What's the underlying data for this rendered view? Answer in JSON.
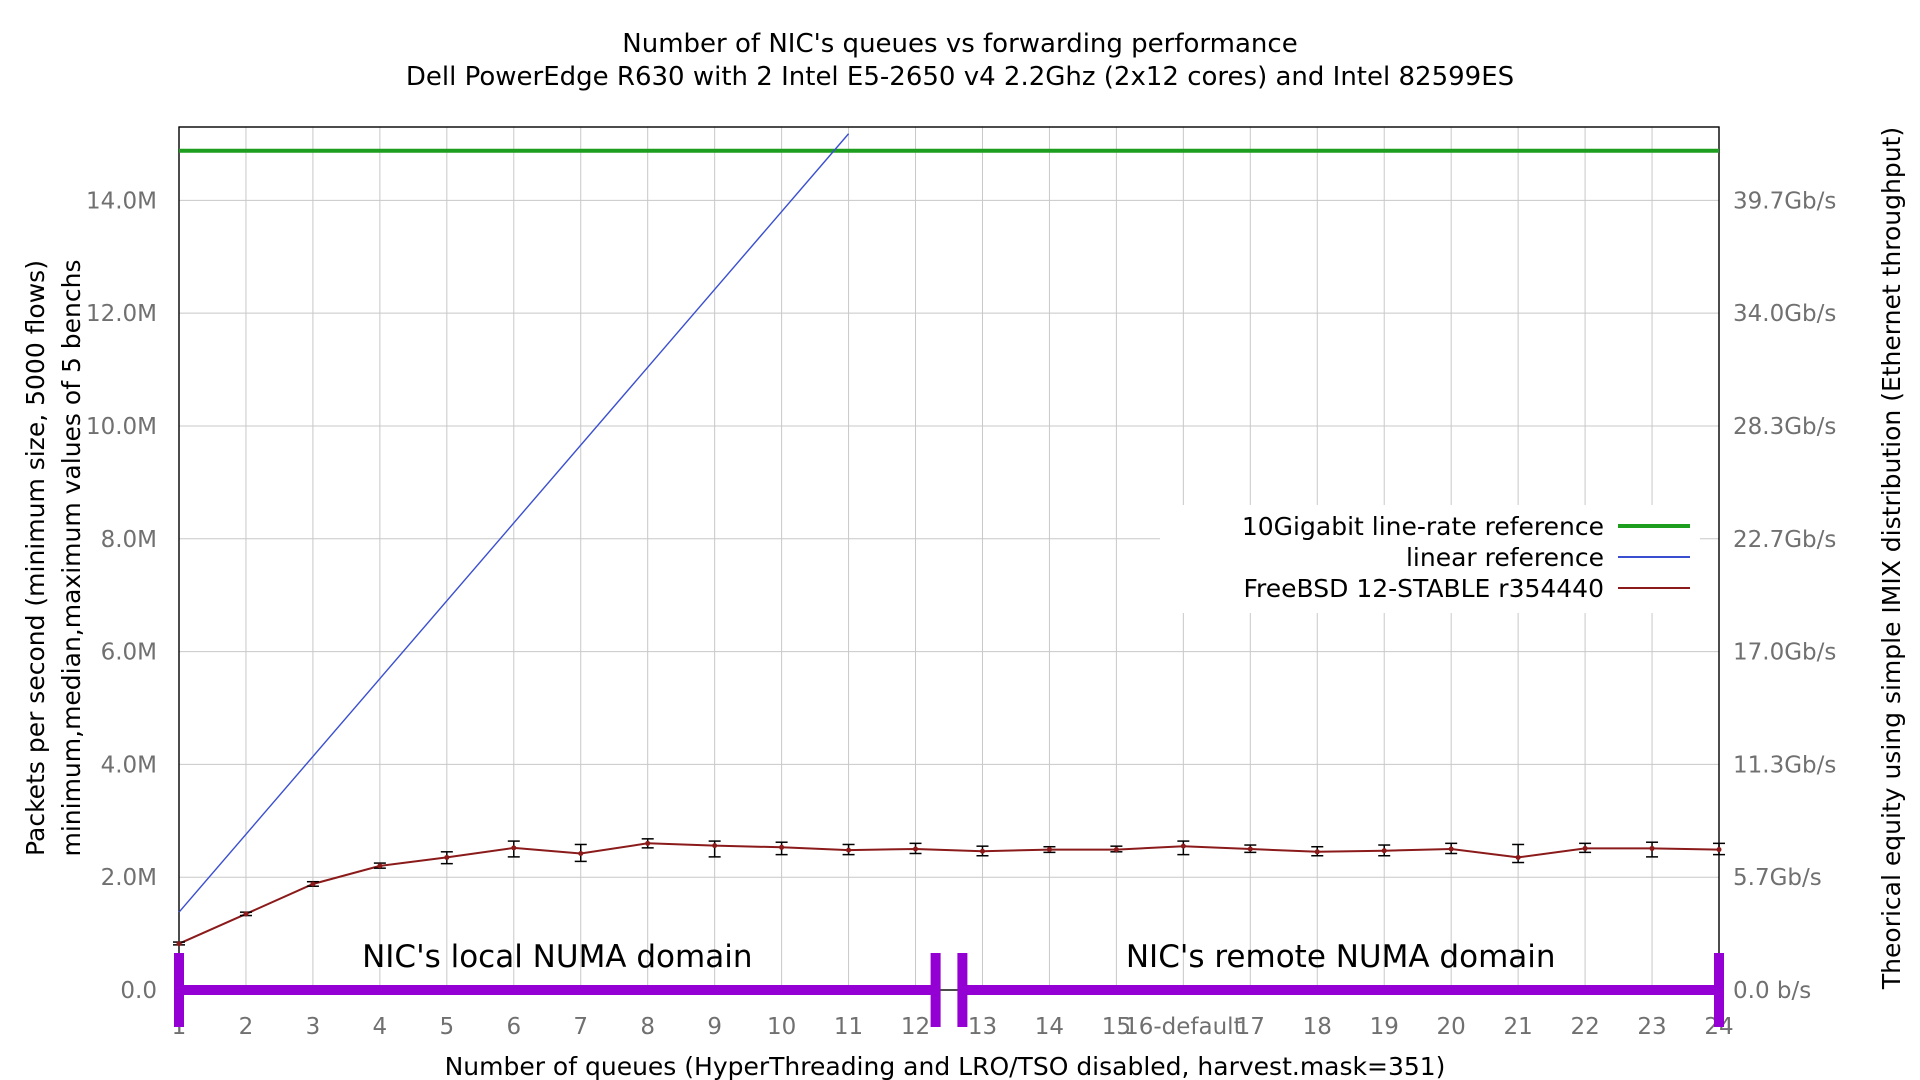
{
  "chart_data": {
    "type": "line",
    "title": "Number of NIC's queues vs forwarding performance",
    "subtitle": "Dell PowerEdge R630 with 2 Intel E5-2650 v4 2.2Ghz (2x12 cores) and Intel 82599ES",
    "xlabel": "Number of queues (HyperThreading and LRO/TSO disabled, harvest.mask=351)",
    "ylabel": "Packets per second (minimum size, 5000 flows)",
    "ylabel2": "minimum,median,maximum values of 5 benchs",
    "y2label": "Theorical equity using simple IMIX distribution (Ethernet throughput)",
    "xlim": [
      1,
      24
    ],
    "ylim": [
      0,
      15300000
    ],
    "x_tick_labels": [
      "1",
      "2",
      "3",
      "4",
      "5",
      "6",
      "7",
      "8",
      "9",
      "10",
      "11",
      "12",
      "13",
      "14",
      "15",
      "16-default",
      "17",
      "18",
      "19",
      "20",
      "21",
      "22",
      "23",
      "24"
    ],
    "y_ticks": [
      {
        "value": 0,
        "label": "0.0"
      },
      {
        "value": 2000000,
        "label": "2.0M"
      },
      {
        "value": 4000000,
        "label": "4.0M"
      },
      {
        "value": 6000000,
        "label": "6.0M"
      },
      {
        "value": 8000000,
        "label": "8.0M"
      },
      {
        "value": 10000000,
        "label": "10.0M"
      },
      {
        "value": 12000000,
        "label": "12.0M"
      },
      {
        "value": 14000000,
        "label": "14.0M"
      }
    ],
    "y2_ticks": [
      {
        "value": 0,
        "label": "0.0 b/s"
      },
      {
        "value": 2000000,
        "label": "5.7Gb/s"
      },
      {
        "value": 4000000,
        "label": "11.3Gb/s"
      },
      {
        "value": 6000000,
        "label": "17.0Gb/s"
      },
      {
        "value": 8000000,
        "label": "22.7Gb/s"
      },
      {
        "value": 10000000,
        "label": "28.3Gb/s"
      },
      {
        "value": 12000000,
        "label": "34.0Gb/s"
      },
      {
        "value": 14000000,
        "label": "39.7Gb/s"
      }
    ],
    "grid": true,
    "legend_position": "center-right",
    "series": [
      {
        "name": "10Gigabit line-rate reference",
        "kind": "hline",
        "value": 14880000,
        "color": "#1e9e1e"
      },
      {
        "name": "linear reference",
        "kind": "line",
        "x": [
          1,
          11
        ],
        "values": [
          1380000,
          15180000
        ],
        "color": "#3a4fd0"
      },
      {
        "name": "FreeBSD 12-STABLE r354440",
        "kind": "errorline",
        "color": "#8b1a1a",
        "x": [
          1,
          2,
          3,
          4,
          5,
          6,
          7,
          8,
          9,
          10,
          11,
          12,
          13,
          14,
          15,
          16,
          17,
          18,
          19,
          20,
          21,
          22,
          23,
          24
        ],
        "values": [
          820000,
          1350000,
          1880000,
          2200000,
          2350000,
          2520000,
          2420000,
          2600000,
          2560000,
          2530000,
          2480000,
          2500000,
          2460000,
          2490000,
          2490000,
          2550000,
          2500000,
          2450000,
          2470000,
          2500000,
          2350000,
          2510000,
          2510000,
          2490000
        ],
        "min": [
          800000,
          1320000,
          1840000,
          2160000,
          2240000,
          2360000,
          2280000,
          2520000,
          2360000,
          2400000,
          2400000,
          2420000,
          2380000,
          2440000,
          2450000,
          2400000,
          2440000,
          2380000,
          2380000,
          2420000,
          2260000,
          2440000,
          2360000,
          2400000
        ],
        "max": [
          850000,
          1380000,
          1920000,
          2250000,
          2450000,
          2640000,
          2580000,
          2680000,
          2640000,
          2620000,
          2580000,
          2600000,
          2550000,
          2540000,
          2550000,
          2640000,
          2570000,
          2540000,
          2570000,
          2600000,
          2580000,
          2600000,
          2620000,
          2600000
        ]
      }
    ],
    "annotations": [
      {
        "text": "NIC's local NUMA domain",
        "x_range": [
          1,
          12.3
        ]
      },
      {
        "text": "NIC's remote NUMA domain",
        "x_range": [
          12.7,
          24
        ]
      }
    ],
    "annotation_color": "#9400d3"
  }
}
